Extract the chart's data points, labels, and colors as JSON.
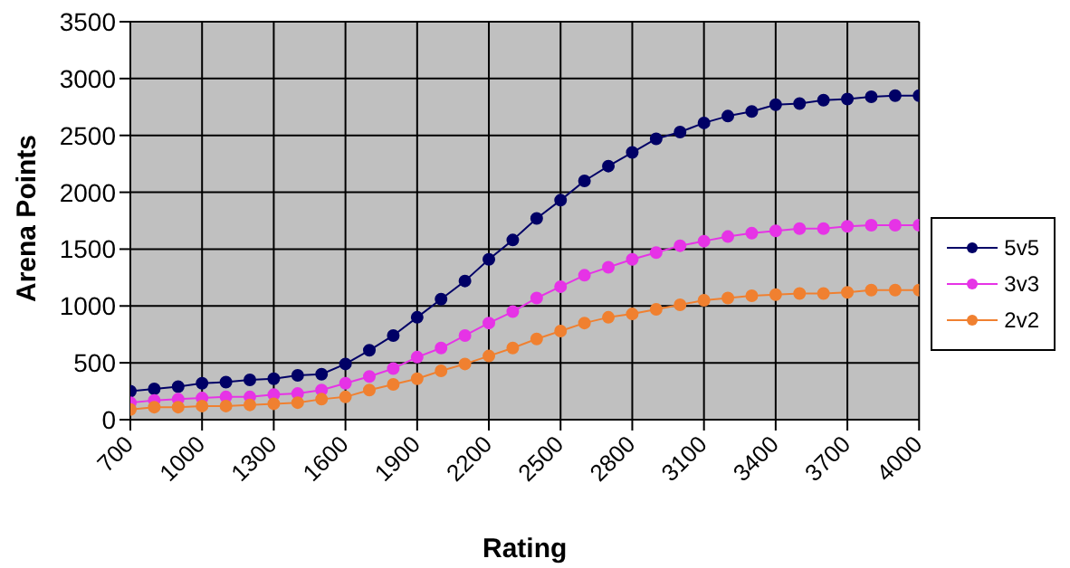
{
  "chart_data": {
    "type": "line",
    "xlabel": "Rating",
    "ylabel": "Arena Points",
    "x": [
      700,
      800,
      900,
      1000,
      1100,
      1200,
      1300,
      1400,
      1500,
      1600,
      1700,
      1800,
      1900,
      2000,
      2100,
      2200,
      2300,
      2400,
      2500,
      2600,
      2700,
      2800,
      2900,
      3000,
      3100,
      3200,
      3300,
      3400,
      3500,
      3600,
      3700,
      3800,
      3900,
      4000
    ],
    "series": [
      {
        "name": "5v5",
        "color": "#000066",
        "values": [
          250,
          270,
          290,
          320,
          330,
          350,
          360,
          390,
          400,
          490,
          610,
          740,
          900,
          1060,
          1220,
          1410,
          1580,
          1770,
          1930,
          2100,
          2230,
          2350,
          2470,
          2530,
          2610,
          2670,
          2710,
          2770,
          2780,
          2810,
          2820,
          2840,
          2850,
          2850
        ]
      },
      {
        "name": "3v3",
        "color": "#e633e6",
        "values": [
          150,
          170,
          180,
          190,
          200,
          200,
          220,
          230,
          260,
          320,
          380,
          450,
          550,
          630,
          740,
          850,
          950,
          1070,
          1170,
          1270,
          1340,
          1410,
          1470,
          1530,
          1570,
          1610,
          1640,
          1660,
          1680,
          1680,
          1700,
          1710,
          1710,
          1710
        ]
      },
      {
        "name": "2v2",
        "color": "#f08030",
        "values": [
          90,
          110,
          110,
          120,
          120,
          130,
          140,
          150,
          180,
          200,
          260,
          310,
          360,
          430,
          490,
          560,
          630,
          710,
          780,
          850,
          900,
          930,
          970,
          1010,
          1050,
          1070,
          1090,
          1100,
          1110,
          1110,
          1120,
          1140,
          1140,
          1140
        ]
      }
    ],
    "xlim": [
      700,
      4000
    ],
    "xticks": [
      700,
      1000,
      1300,
      1600,
      1900,
      2200,
      2500,
      2800,
      3100,
      3400,
      3700,
      4000
    ],
    "ylim": [
      0,
      3500
    ],
    "yticks": [
      0,
      500,
      1000,
      1500,
      2000,
      2500,
      3000,
      3500
    ],
    "grid": true,
    "legend": "right",
    "marker": "circle",
    "line_style": "solid"
  }
}
